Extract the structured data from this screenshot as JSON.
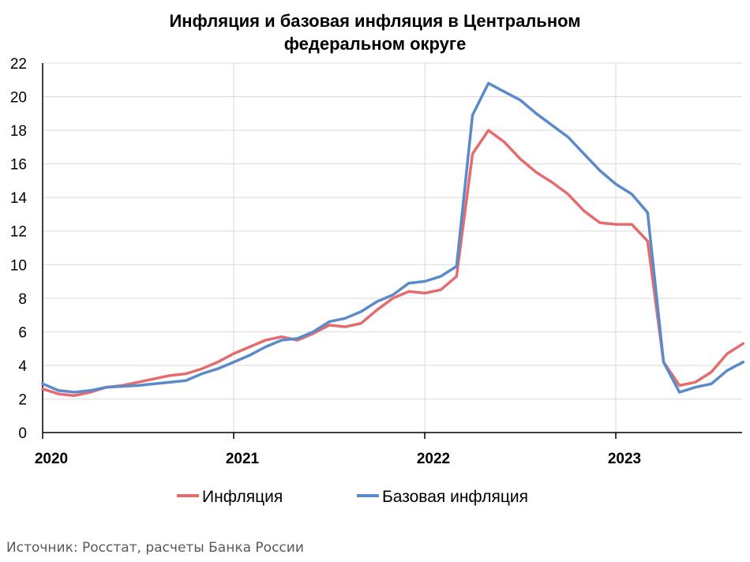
{
  "chart_data": {
    "type": "line",
    "title": "Инфляция и базовая инфляция в Центральном федеральном округе",
    "title_lines": [
      "Инфляция и базовая инфляция в Центральном",
      "федеральном округе"
    ],
    "xlabel": "",
    "ylabel": "",
    "ylim": [
      0,
      22
    ],
    "y_ticks": [
      "0",
      "2",
      "4",
      "6",
      "8",
      "10",
      "12",
      "14",
      "16",
      "18",
      "20",
      "22"
    ],
    "x_ticks": [
      "2020",
      "2021",
      "2022",
      "2023"
    ],
    "x_start": "2020-01",
    "grid": true,
    "legend_position": "bottom",
    "series": [
      {
        "name": "Инфляция",
        "color": "#e46c6f",
        "values": [
          2.6,
          2.3,
          2.2,
          2.4,
          2.7,
          2.8,
          3.0,
          3.2,
          3.4,
          3.5,
          3.8,
          4.2,
          4.7,
          5.1,
          5.5,
          5.7,
          5.5,
          5.9,
          6.4,
          6.3,
          6.5,
          7.3,
          8.0,
          8.4,
          8.3,
          8.5,
          9.3,
          16.6,
          18.0,
          17.3,
          16.3,
          15.5,
          14.9,
          14.2,
          13.2,
          12.5,
          12.4,
          12.4,
          11.4,
          4.2,
          2.8,
          3.0,
          3.6,
          4.7,
          5.3
        ]
      },
      {
        "name": "Базовая инфляция",
        "color": "#5b8ac8",
        "values": [
          2.9,
          2.5,
          2.4,
          2.5,
          2.7,
          2.75,
          2.8,
          2.9,
          3.0,
          3.1,
          3.5,
          3.8,
          4.2,
          4.6,
          5.1,
          5.5,
          5.6,
          6.0,
          6.6,
          6.8,
          7.2,
          7.8,
          8.2,
          8.9,
          9.0,
          9.3,
          9.9,
          18.9,
          20.8,
          20.3,
          19.8,
          19.0,
          18.3,
          17.6,
          16.6,
          15.6,
          14.8,
          14.2,
          13.1,
          4.2,
          2.4,
          2.7,
          2.9,
          3.7,
          4.2
        ]
      }
    ]
  },
  "source_note": "Источник: Росстат, расчеты Банка России"
}
